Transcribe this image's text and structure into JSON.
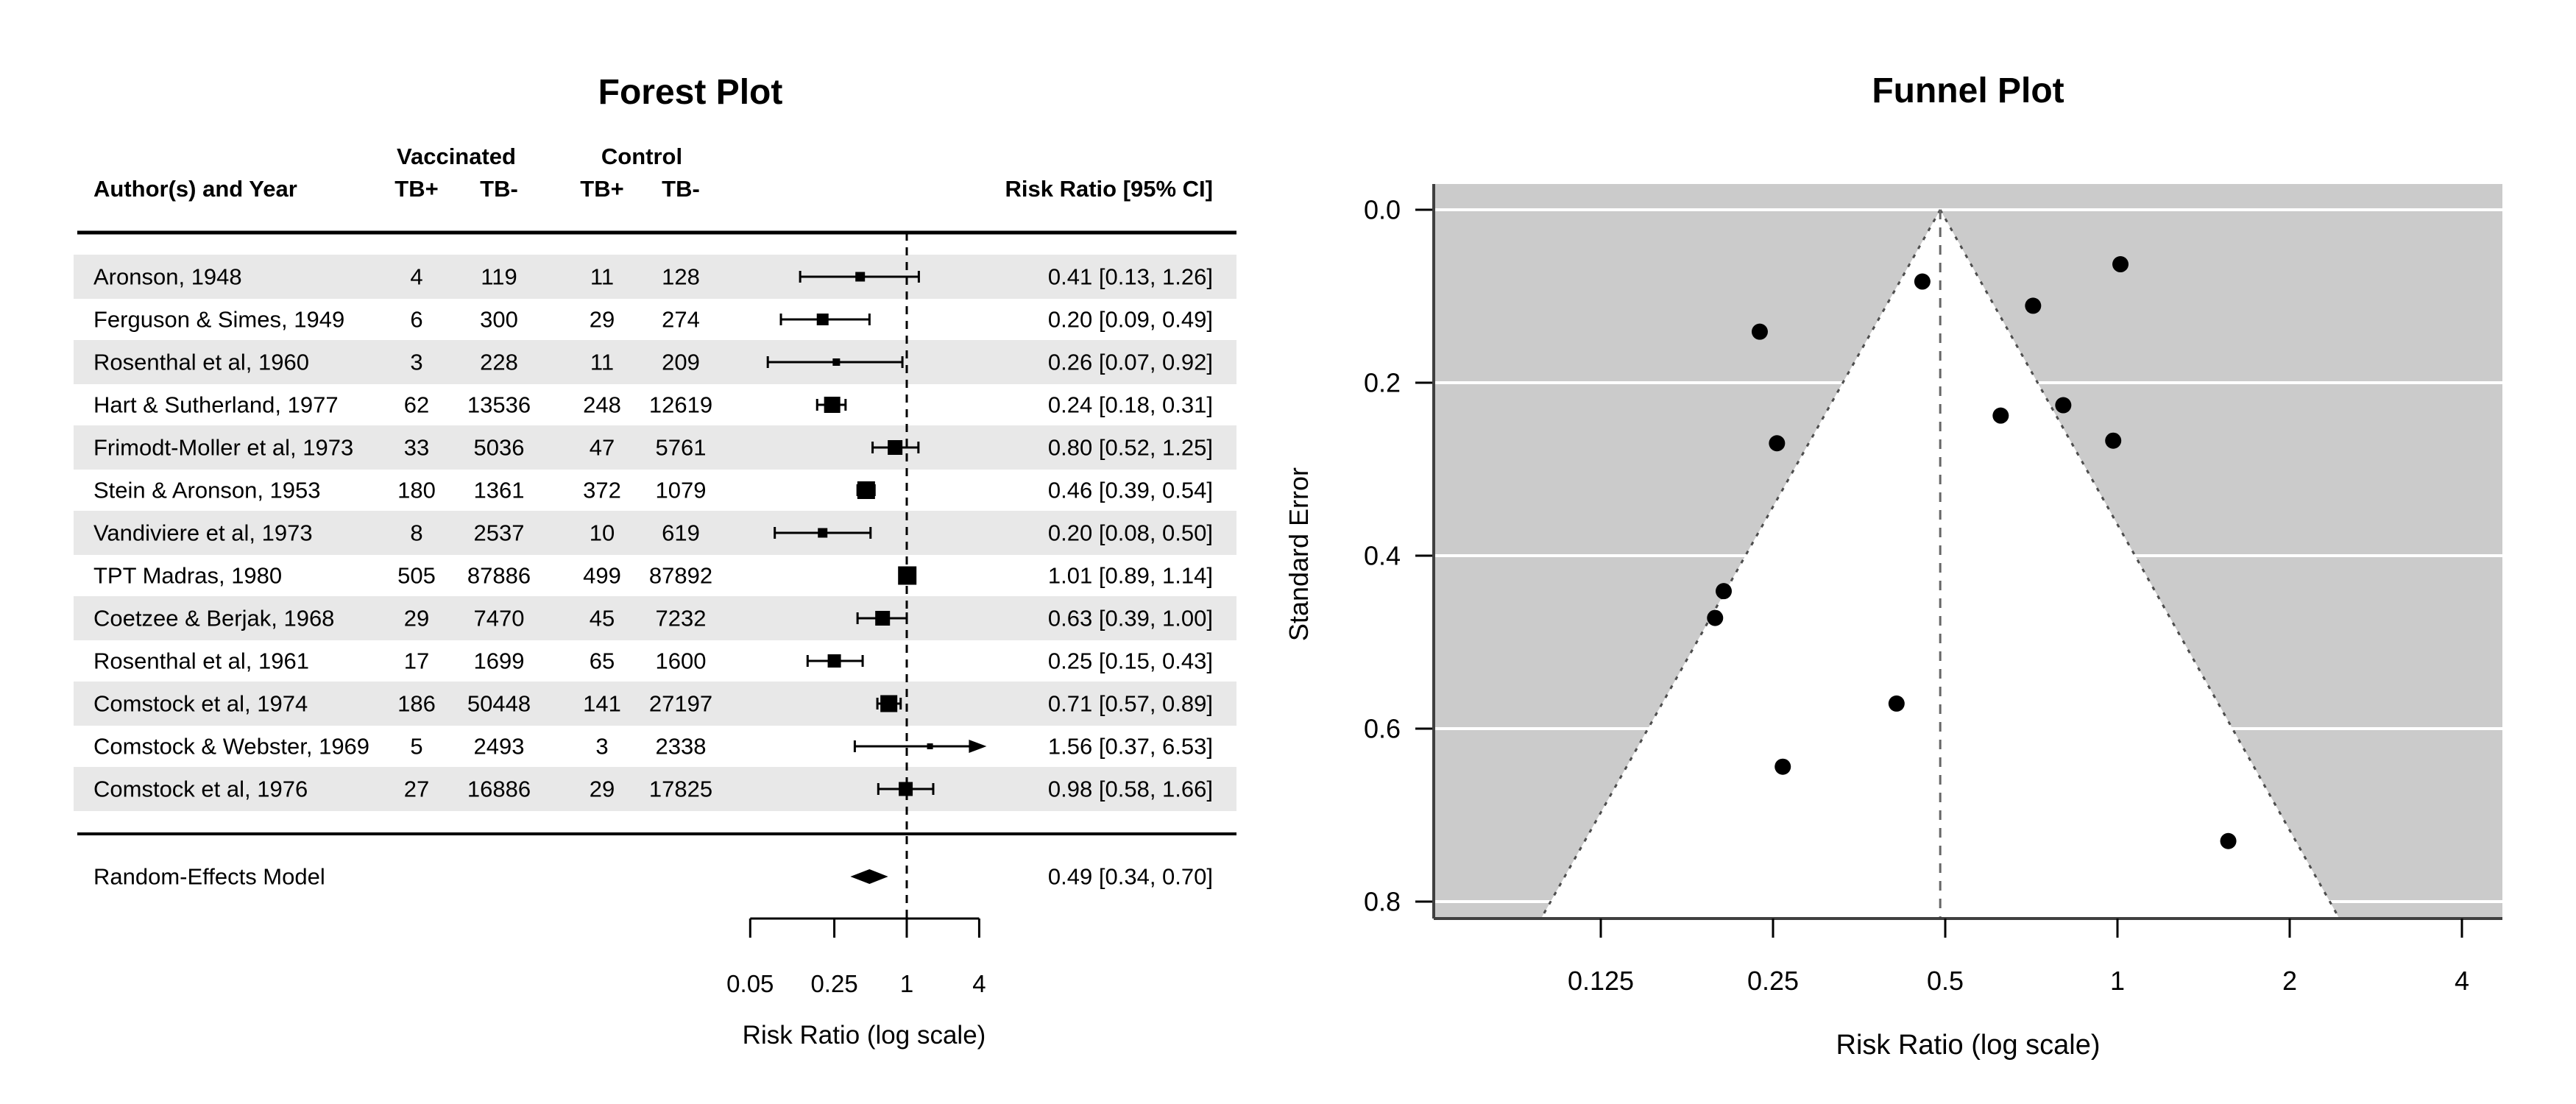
{
  "colors": {
    "foreground": "#000000",
    "row_band": "#e8e8e8",
    "funnel_background": "#cbcbcb",
    "gridline": "#ffffff",
    "funnel_region": "#ffffff",
    "funnel_edge": "#4d4d4d",
    "center_line": "#666666",
    "axis_line": "#404040"
  },
  "chart_data": [
    {
      "type": "table",
      "subtype": "forest-plot",
      "title": "Forest Plot",
      "xlabel": "Risk Ratio (log scale)",
      "headers": {
        "author": "Author(s) and Year",
        "group_vaccinated": "Vaccinated",
        "group_control": "Control",
        "tb_pos": "TB+",
        "tb_neg": "TB-",
        "risk_ratio": "Risk Ratio [95% CI]"
      },
      "axis": {
        "tick_values": [
          0.05,
          0.25,
          1,
          4
        ],
        "tick_labels": [
          "0.05",
          "0.25",
          "1",
          "4"
        ],
        "reference_value": 1,
        "scale": "log"
      },
      "rows": [
        {
          "author": "Aronson, 1948",
          "tb_pos_vacc": "4",
          "tb_neg_vacc": "119",
          "tb_pos_ctrl": "11",
          "tb_neg_ctrl": "128",
          "rr": 0.41,
          "ci_low": 0.13,
          "ci_high": 1.26,
          "label": "0.41 [0.13, 1.26]",
          "size": 13
        },
        {
          "author": "Ferguson & Simes, 1949",
          "tb_pos_vacc": "6",
          "tb_neg_vacc": "300",
          "tb_pos_ctrl": "29",
          "tb_neg_ctrl": "274",
          "rr": 0.2,
          "ci_low": 0.09,
          "ci_high": 0.49,
          "label": "0.20 [0.09, 0.49]",
          "size": 16
        },
        {
          "author": "Rosenthal et al, 1960",
          "tb_pos_vacc": "3",
          "tb_neg_vacc": "228",
          "tb_pos_ctrl": "11",
          "tb_neg_ctrl": "209",
          "rr": 0.26,
          "ci_low": 0.07,
          "ci_high": 0.92,
          "label": "0.26 [0.07, 0.92]",
          "size": 10
        },
        {
          "author": "Hart & Sutherland, 1977",
          "tb_pos_vacc": "62",
          "tb_neg_vacc": "13536",
          "tb_pos_ctrl": "248",
          "tb_neg_ctrl": "12619",
          "rr": 0.24,
          "ci_low": 0.18,
          "ci_high": 0.31,
          "label": "0.24 [0.18, 0.31]",
          "size": 22
        },
        {
          "author": "Frimodt-Moller et al, 1973",
          "tb_pos_vacc": "33",
          "tb_neg_vacc": "5036",
          "tb_pos_ctrl": "47",
          "tb_neg_ctrl": "5761",
          "rr": 0.8,
          "ci_low": 0.52,
          "ci_high": 1.25,
          "label": "0.80 [0.52, 1.25]",
          "size": 20
        },
        {
          "author": "Stein & Aronson, 1953",
          "tb_pos_vacc": "180",
          "tb_neg_vacc": "1361",
          "tb_pos_ctrl": "372",
          "tb_neg_ctrl": "1079",
          "rr": 0.46,
          "ci_low": 0.39,
          "ci_high": 0.54,
          "label": "0.46 [0.39, 0.54]",
          "size": 24
        },
        {
          "author": "Vandiviere et al, 1973",
          "tb_pos_vacc": "8",
          "tb_neg_vacc": "2537",
          "tb_pos_ctrl": "10",
          "tb_neg_ctrl": "619",
          "rr": 0.2,
          "ci_low": 0.08,
          "ci_high": 0.5,
          "label": "0.20 [0.08, 0.50]",
          "size": 13
        },
        {
          "author": "TPT Madras, 1980",
          "tb_pos_vacc": "505",
          "tb_neg_vacc": "87886",
          "tb_pos_ctrl": "499",
          "tb_neg_ctrl": "87892",
          "rr": 1.01,
          "ci_low": 0.89,
          "ci_high": 1.14,
          "label": "1.01 [0.89, 1.14]",
          "size": 25
        },
        {
          "author": "Coetzee & Berjak, 1968",
          "tb_pos_vacc": "29",
          "tb_neg_vacc": "7470",
          "tb_pos_ctrl": "45",
          "tb_neg_ctrl": "7232",
          "rr": 0.63,
          "ci_low": 0.39,
          "ci_high": 1.0,
          "label": "0.63 [0.39, 1.00]",
          "size": 20
        },
        {
          "author": "Rosenthal et al, 1961",
          "tb_pos_vacc": "17",
          "tb_neg_vacc": "1699",
          "tb_pos_ctrl": "65",
          "tb_neg_ctrl": "1600",
          "rr": 0.25,
          "ci_low": 0.15,
          "ci_high": 0.43,
          "label": "0.25 [0.15, 0.43]",
          "size": 18
        },
        {
          "author": "Comstock et al, 1974",
          "tb_pos_vacc": "186",
          "tb_neg_vacc": "50448",
          "tb_pos_ctrl": "141",
          "tb_neg_ctrl": "27197",
          "rr": 0.71,
          "ci_low": 0.57,
          "ci_high": 0.89,
          "label": "0.71 [0.57, 0.89]",
          "size": 23
        },
        {
          "author": "Comstock & Webster, 1969",
          "tb_pos_vacc": "5",
          "tb_neg_vacc": "2493",
          "tb_pos_ctrl": "3",
          "tb_neg_ctrl": "2338",
          "rr": 1.56,
          "ci_low": 0.37,
          "ci_high": 6.53,
          "label": "1.56 [0.37, 6.53]",
          "size": 8
        },
        {
          "author": "Comstock et al, 1976",
          "tb_pos_vacc": "27",
          "tb_neg_vacc": "16886",
          "tb_pos_ctrl": "29",
          "tb_neg_ctrl": "17825",
          "rr": 0.98,
          "ci_low": 0.58,
          "ci_high": 1.66,
          "label": "0.98 [0.58, 1.66]",
          "size": 19
        }
      ],
      "summary": {
        "label": "Random-Effects Model",
        "rr": 0.49,
        "ci_low": 0.34,
        "ci_high": 0.7,
        "estimate_label": "0.49 [0.34, 0.70]"
      }
    },
    {
      "type": "scatter",
      "subtype": "funnel-plot",
      "title": "Funnel Plot",
      "xlabel": "Risk Ratio (log scale)",
      "ylabel": "Standard Error",
      "x_ticks": {
        "values": [
          0.125,
          0.25,
          0.5,
          1,
          2,
          4
        ],
        "labels": [
          "0.125",
          "0.25",
          "0.5",
          "1",
          "2",
          "4"
        ],
        "scale": "log"
      },
      "y_ticks": {
        "values": [
          0,
          0.2,
          0.4,
          0.6,
          0.8
        ],
        "labels": [
          "0.0",
          "0.2",
          "0.4",
          "0.6",
          "0.8"
        ]
      },
      "ylim": [
        0,
        0.82
      ],
      "center_rr": 0.49,
      "ci_z": 1.96,
      "grid": true,
      "points": [
        {
          "study": "Aronson, 1948",
          "rr": 0.411,
          "se": 0.571
        },
        {
          "study": "Ferguson & Simes, 1949",
          "rr": 0.205,
          "se": 0.441
        },
        {
          "study": "Rosenthal et al, 1960",
          "rr": 0.26,
          "se": 0.644
        },
        {
          "study": "Hart & Sutherland, 1977",
          "rr": 0.237,
          "se": 0.141
        },
        {
          "study": "Frimodt-Moller et al, 1973",
          "rr": 0.804,
          "se": 0.226
        },
        {
          "study": "Stein & Aronson, 1953",
          "rr": 0.456,
          "se": 0.083
        },
        {
          "study": "Vandiviere et al, 1973",
          "rr": 0.198,
          "se": 0.472
        },
        {
          "study": "TPT Madras, 1980",
          "rr": 1.012,
          "se": 0.063
        },
        {
          "study": "Coetzee & Berjak, 1968",
          "rr": 0.625,
          "se": 0.238
        },
        {
          "study": "Rosenthal et al, 1961",
          "rr": 0.254,
          "se": 0.27
        },
        {
          "study": "Comstock et al, 1974",
          "rr": 0.712,
          "se": 0.111
        },
        {
          "study": "Comstock & Webster, 1969",
          "rr": 1.562,
          "se": 0.73
        },
        {
          "study": "Comstock et al, 1976",
          "rr": 0.983,
          "se": 0.267
        }
      ]
    }
  ]
}
